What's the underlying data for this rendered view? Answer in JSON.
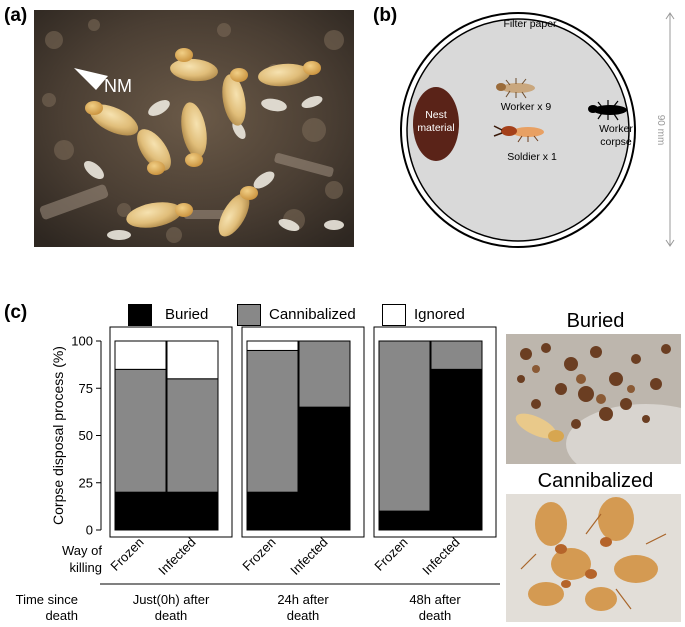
{
  "panel_a": {
    "label": "(a)",
    "nm_label": "NM"
  },
  "panel_b": {
    "label": "(b)",
    "filter_paper": "Filter paper",
    "nest_material": [
      "Nest",
      "material"
    ],
    "worker_group": "Worker x 9",
    "soldier_group": "Soldier x 1",
    "corpse": [
      "Worker",
      "corpse"
    ],
    "dimension": "90 mm"
  },
  "panel_c": {
    "label": "(c)",
    "legend": [
      {
        "name": "Buried",
        "color": "#000000"
      },
      {
        "name": "Cannibalized",
        "color": "#888888"
      },
      {
        "name": "Ignored",
        "color": "#ffffff"
      }
    ],
    "way_of_killing_label": [
      "Way of",
      "killing"
    ],
    "time_since_death_label": [
      "Time since",
      "death"
    ],
    "photos": {
      "buried_title": "Buried",
      "cannibalized_title": "Cannibalized"
    }
  },
  "chart_data": {
    "type": "bar",
    "stacked": true,
    "ylabel": "Corpse disposal process (%)",
    "ylim": [
      0,
      100
    ],
    "yticks": [
      "0",
      "25",
      "50",
      "75",
      "100"
    ],
    "groups": [
      {
        "label": [
          "Just(0h) after",
          "death"
        ],
        "categories": [
          "Frozen",
          "Infected"
        ]
      },
      {
        "label": [
          "24h after",
          "death"
        ],
        "categories": [
          "Frozen",
          "Infected"
        ]
      },
      {
        "label": [
          "48h after",
          "death"
        ],
        "categories": [
          "Frozen",
          "Infected"
        ]
      }
    ],
    "series": [
      {
        "name": "Buried",
        "color": "#000000",
        "values": [
          20,
          20,
          20,
          65,
          10,
          85
        ]
      },
      {
        "name": "Cannibalized",
        "color": "#888888",
        "values": [
          65,
          60,
          75,
          35,
          90,
          15
        ]
      },
      {
        "name": "Ignored",
        "color": "#ffffff",
        "values": [
          15,
          20,
          5,
          0,
          0,
          0
        ]
      }
    ]
  }
}
